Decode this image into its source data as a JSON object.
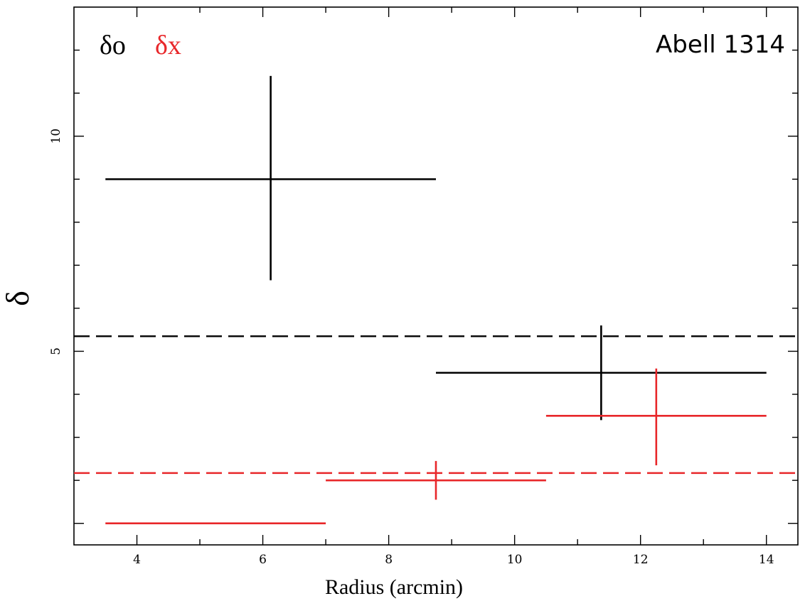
{
  "chart_data": {
    "type": "scatter",
    "title": "Abell 1314",
    "xlabel": "Radius (arcmin)",
    "ylabel": "δ",
    "xlim": [
      3,
      14.5
    ],
    "ylim": [
      0.5,
      13
    ],
    "x_major_ticks": [
      4,
      6,
      8,
      10,
      12,
      14
    ],
    "y_major_ticks": [
      1,
      5,
      10
    ],
    "y_tick_labels_shown": [
      "5",
      "10"
    ],
    "legend": [
      {
        "label": "δo",
        "color": "#000000"
      },
      {
        "label": "δx",
        "color": "#e8272a"
      }
    ],
    "series": [
      {
        "name": "δo",
        "color": "#000000",
        "points": [
          {
            "x": 6.125,
            "xerr": 2.625,
            "y": 9.0,
            "y_low": 6.65,
            "y_high": 11.4
          },
          {
            "x": 11.375,
            "xerr": 2.625,
            "y": 4.5,
            "y_low": 3.4,
            "y_high": 5.6
          }
        ]
      },
      {
        "name": "δx",
        "color": "#e8272a",
        "points": [
          {
            "x": 5.25,
            "xerr": 1.75,
            "y": 1.0,
            "y_low": null,
            "y_high": null
          },
          {
            "x": 8.75,
            "xerr": 1.75,
            "y": 2.0,
            "y_low": 1.55,
            "y_high": 2.45
          },
          {
            "x": 12.25,
            "xerr": 1.75,
            "y": 3.5,
            "y_low": 2.35,
            "y_high": 4.6
          }
        ]
      }
    ],
    "reference_lines": [
      {
        "y": 5.35,
        "color": "#000000",
        "style": "dashed"
      },
      {
        "y": 2.17,
        "color": "#e8272a",
        "style": "dashed"
      }
    ],
    "grid": false
  }
}
